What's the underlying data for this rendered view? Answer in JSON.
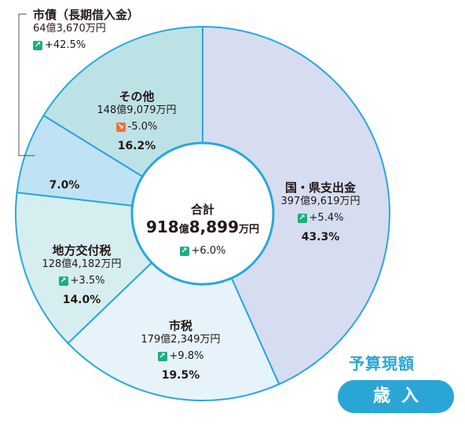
{
  "chart_data": {
    "type": "pie",
    "total": {
      "label": "合計",
      "oku": "918",
      "oku_unit": "億",
      "man": "8,899",
      "man_unit": "万円",
      "change": "+6.0%"
    },
    "slices": [
      {
        "name": "国・県支出金",
        "oku": "397",
        "man": "9,619",
        "change": "+5.4%",
        "direction": "up",
        "percent": 43.3,
        "percent_label": "43.3",
        "color": "#d6ddf0"
      },
      {
        "name": "市税",
        "oku": "179",
        "man": "2,349",
        "change": "+9.8%",
        "direction": "up",
        "percent": 19.5,
        "percent_label": "19.5",
        "color": "#e7f3fb"
      },
      {
        "name": "地方交付税",
        "oku": "128",
        "man": "4,182",
        "change": "+3.5%",
        "direction": "up",
        "percent": 14.0,
        "percent_label": "14.0",
        "color": "#d6eef0"
      },
      {
        "name": "市債（長期借入金）",
        "oku": "64",
        "man": "3,670",
        "change": "+42.5%",
        "direction": "up",
        "percent": 7.0,
        "percent_label": "7.0",
        "color": "#bfe3f5"
      },
      {
        "name": "その他",
        "oku": "148",
        "man": "9,079",
        "change": "-5.0%",
        "direction": "down",
        "percent": 16.2,
        "percent_label": "16.2",
        "color": "#bde2e6"
      }
    ],
    "units": {
      "oku": "億",
      "man": "万円",
      "percent": "%"
    }
  },
  "badge": {
    "title": "予算現額",
    "label": "歳入"
  },
  "colors": {
    "stroke": "#29a7dc",
    "accent": "#2aa6d6",
    "up": "#1aaf7e",
    "down": "#e8733a"
  }
}
